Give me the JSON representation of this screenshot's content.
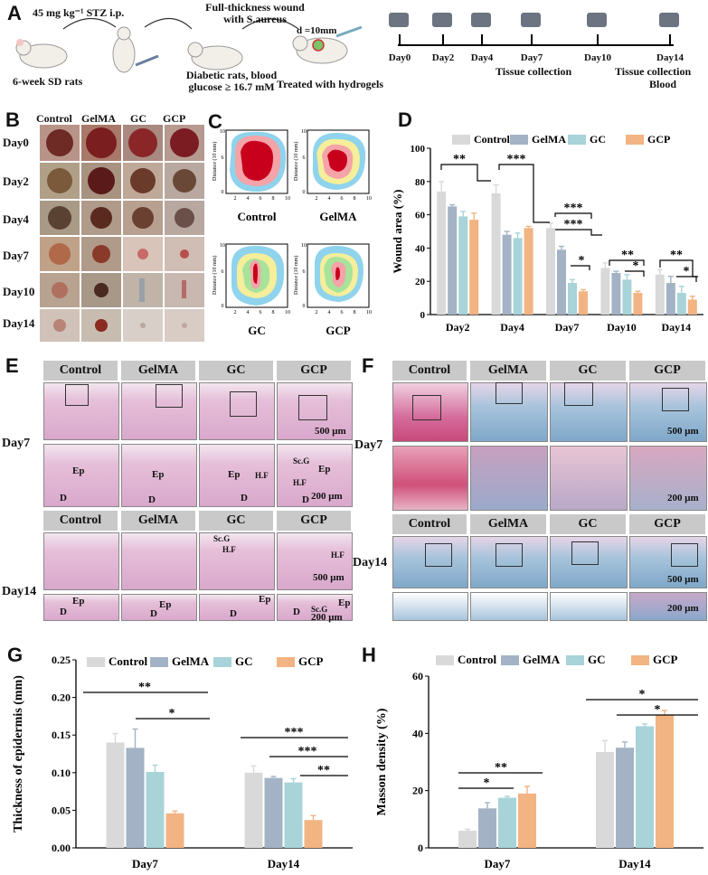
{
  "panels": {
    "A": "A",
    "B": "B",
    "C": "C",
    "D": "D",
    "E": "E",
    "F": "F",
    "G": "G",
    "H": "H"
  },
  "schema": {
    "step1": "45 mg kg⁻¹ STZ i.p.",
    "rats": "6-week SD rats",
    "step2": "Full-thickness wound with S.aureus",
    "diabetic": "Diabetic rats, blood glucose ≥ 16.7 mM",
    "diameter": "d =10mm",
    "treated": "Treated with hydrogels",
    "timeline": [
      "Day0",
      "Day2",
      "Day4",
      "Day7",
      "Day10",
      "Day14"
    ],
    "collect1": "Tissue collection",
    "collect2": "Tissue collection",
    "blood": "Blood"
  },
  "photos": {
    "groups": [
      "Control",
      "GelMA",
      "GC",
      "GCP"
    ],
    "days": [
      "Day0",
      "Day2",
      "Day4",
      "Day7",
      "Day10",
      "Day14"
    ]
  },
  "traces": {
    "labels": [
      "Control",
      "GelMA",
      "GC",
      "GCP"
    ],
    "ylabel": "Distance (10 mm)",
    "ticks": [
      "2",
      "4",
      "6",
      "8",
      "10"
    ],
    "yticks": [
      "0",
      "2",
      "4",
      "6",
      "8",
      "10"
    ]
  },
  "histo": {
    "groups": [
      "Control",
      "GelMA",
      "GC",
      "GCP"
    ],
    "day7": "Day7",
    "day14": "Day14",
    "scale500": "500 μm",
    "scale200": "200 μm",
    "ep": "Ep",
    "d": "D",
    "hf": "H.F",
    "scg": "Sc.G"
  },
  "colors": {
    "Control": "#d9d9d9",
    "GelMA": "#a3b3c5",
    "GC": "#a8d3d9",
    "GCP": "#f2b482"
  },
  "chart_data": [
    {
      "id": "D",
      "type": "bar",
      "ylabel": "Wound area (%)",
      "categories": [
        "Day2",
        "Day4",
        "Day7",
        "Day10",
        "Day14"
      ],
      "ylim": [
        0,
        100
      ],
      "yticks": [
        0,
        20,
        40,
        60,
        80,
        100
      ],
      "series": [
        {
          "name": "Control",
          "values": [
            74,
            73,
            52,
            28,
            24
          ],
          "err": [
            6,
            5,
            3,
            3,
            3
          ]
        },
        {
          "name": "GelMA",
          "values": [
            65,
            48,
            39,
            25,
            19
          ],
          "err": [
            1,
            2,
            2,
            1,
            4
          ]
        },
        {
          "name": "GC",
          "values": [
            59,
            46,
            19,
            21,
            13
          ],
          "err": [
            3,
            3,
            2,
            3,
            4
          ]
        },
        {
          "name": "GCP",
          "values": [
            57,
            52,
            14,
            13,
            9
          ],
          "err": [
            4,
            1,
            1,
            1,
            2
          ]
        }
      ],
      "sig": [
        "**",
        "***",
        "***",
        "***",
        "*",
        "**",
        "*",
        "**",
        "*"
      ]
    },
    {
      "id": "G",
      "type": "bar",
      "ylabel": "Thickness of epidermis (mm)",
      "categories": [
        "Day7",
        "Day14"
      ],
      "ylim": [
        0,
        0.25
      ],
      "yticks": [
        "0.00",
        "0.05",
        "0.10",
        "0.15",
        "0.20",
        "0.25"
      ],
      "series": [
        {
          "name": "Control",
          "values": [
            0.14,
            0.1
          ],
          "err": [
            0.012,
            0.009
          ]
        },
        {
          "name": "GelMA",
          "values": [
            0.133,
            0.093
          ],
          "err": [
            0.025,
            0.002
          ]
        },
        {
          "name": "GC",
          "values": [
            0.101,
            0.087
          ],
          "err": [
            0.009,
            0.005
          ]
        },
        {
          "name": "GCP",
          "values": [
            0.046,
            0.037
          ],
          "err": [
            0.003,
            0.006
          ]
        }
      ],
      "sig": [
        "**",
        "*",
        "***",
        "***",
        "**"
      ]
    },
    {
      "id": "H",
      "type": "bar",
      "ylabel": "Masson density (%)",
      "categories": [
        "Day7",
        "Day14"
      ],
      "ylim": [
        0,
        60
      ],
      "yticks": [
        0,
        20,
        40,
        60
      ],
      "series": [
        {
          "name": "Control",
          "values": [
            6,
            33.5
          ],
          "err": [
            0.5,
            4
          ]
        },
        {
          "name": "GelMA",
          "values": [
            13.8,
            35
          ],
          "err": [
            2,
            2
          ]
        },
        {
          "name": "GC",
          "values": [
            17.5,
            42.5
          ],
          "err": [
            0.5,
            0.8
          ]
        },
        {
          "name": "GCP",
          "values": [
            19,
            46.5
          ],
          "err": [
            2.5,
            1.5
          ]
        }
      ],
      "sig": [
        "**",
        "*",
        "*",
        "*"
      ]
    }
  ]
}
